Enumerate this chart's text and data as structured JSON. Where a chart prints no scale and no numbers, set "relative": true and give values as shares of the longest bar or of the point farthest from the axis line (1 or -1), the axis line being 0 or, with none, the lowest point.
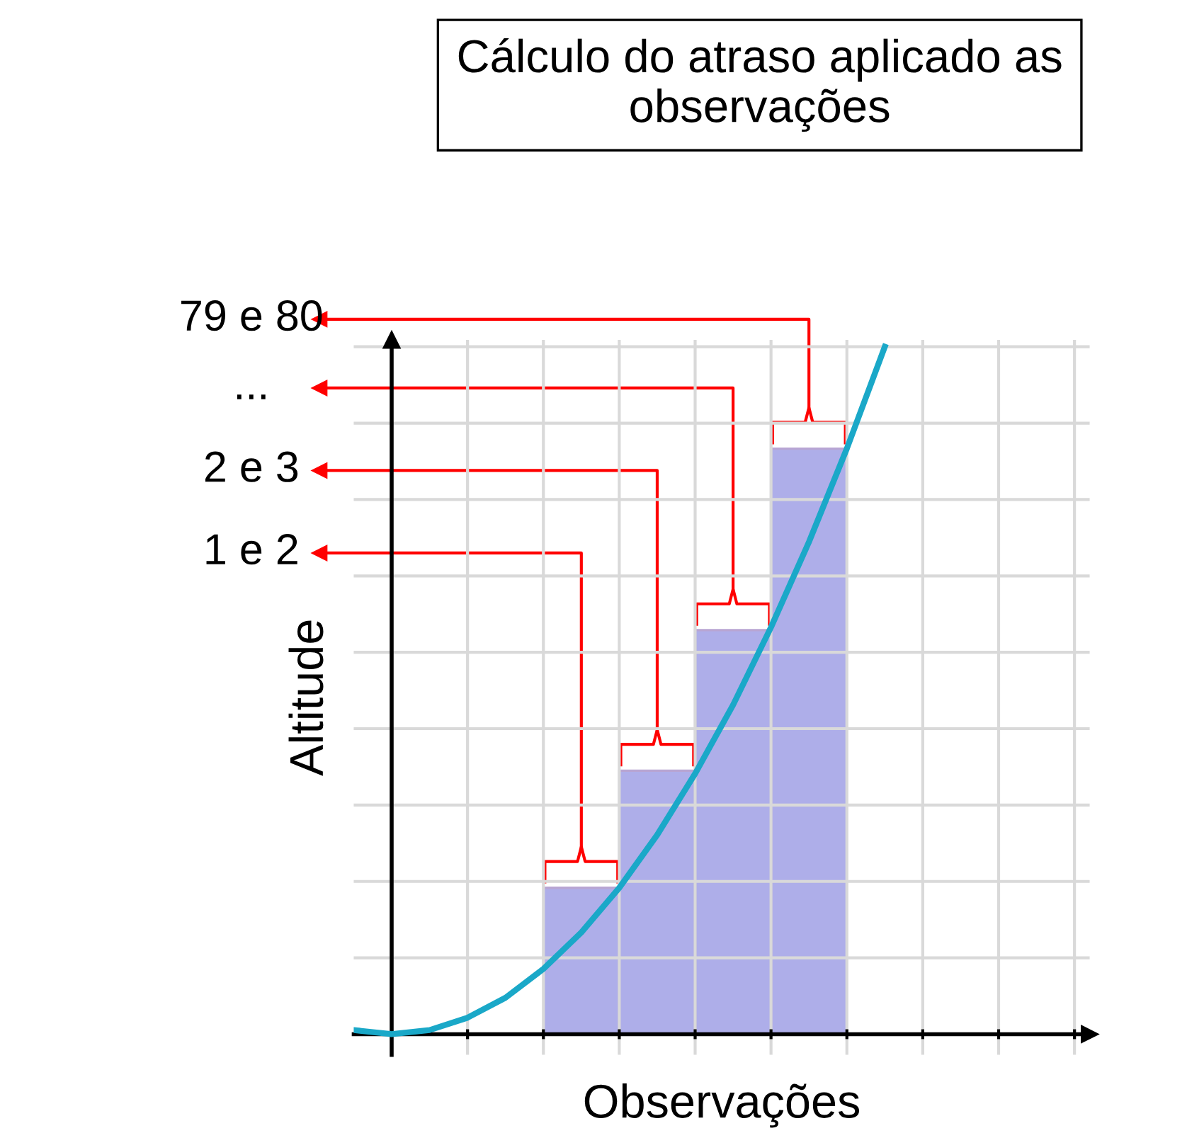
{
  "chart_data": [
    {
      "type": "line",
      "xlabel": "Observações",
      "ylabel": "Altitude",
      "relative": true,
      "grid": true,
      "tick_labels": false,
      "categories": [
        null,
        null,
        null,
        null,
        null,
        null,
        null,
        null,
        null,
        null,
        null,
        null,
        null,
        null,
        null
      ],
      "series": [
        {
          "color": "#1aa8c8",
          "values": [
            0.006,
            0,
            0.006,
            0.024,
            0.053,
            0.095,
            0.148,
            0.213,
            0.29,
            0.379,
            0.479,
            0.592,
            0.716,
            0.852,
            1.0
          ]
        }
      ]
    },
    {
      "type": "bar",
      "title": "Cálculo do atraso aplicado as observações",
      "relative": true,
      "tick_labels": false,
      "categories": [
        null,
        null,
        null,
        null
      ],
      "series": [
        {
          "color": "#8c8ce0",
          "values": [
            0.25,
            0.45,
            0.69,
            1.0
          ]
        }
      ],
      "annotations": [
        "1 e 2",
        "2 e 3",
        "...",
        "79 e 80"
      ]
    }
  ]
}
